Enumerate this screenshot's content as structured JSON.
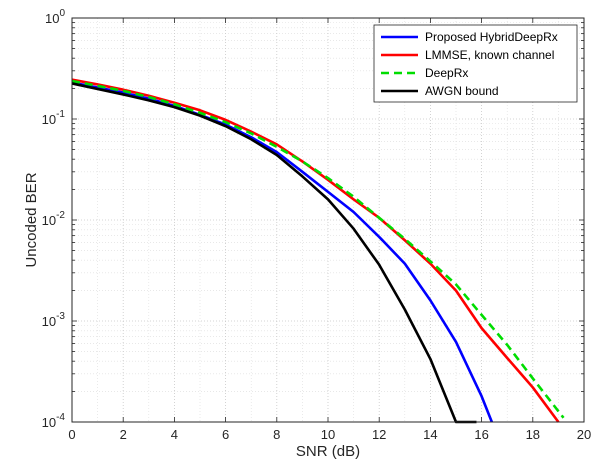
{
  "chart_data": {
    "type": "line",
    "title": "",
    "xlabel": "SNR (dB)",
    "ylabel": "Uncoded BER",
    "xlim": [
      0,
      20
    ],
    "ylim": [
      0.0001,
      1
    ],
    "yscale": "log",
    "grid": "major and minor, dotted",
    "legend_position": "top-right",
    "x_ticks": [
      0,
      2,
      4,
      6,
      8,
      10,
      12,
      14,
      16,
      18,
      20
    ],
    "y_ticks": [
      {
        "value": 0.0001,
        "base": "10",
        "exp": "-4"
      },
      {
        "value": 0.001,
        "base": "10",
        "exp": "-3"
      },
      {
        "value": 0.01,
        "base": "10",
        "exp": "-2"
      },
      {
        "value": 0.1,
        "base": "10",
        "exp": "-1"
      },
      {
        "value": 1,
        "base": "10",
        "exp": "0"
      }
    ],
    "series": [
      {
        "name": "Proposed HybridDeepRx",
        "color": "#0000ff",
        "style": "solid",
        "x": [
          0,
          1,
          2,
          3,
          4,
          5,
          6,
          7,
          8,
          9,
          10,
          11,
          12,
          13,
          14,
          15,
          16,
          16.4
        ],
        "y": [
          0.23,
          0.205,
          0.183,
          0.159,
          0.135,
          0.11,
          0.088,
          0.066,
          0.047,
          0.03,
          0.019,
          0.012,
          0.0068,
          0.0037,
          0.0016,
          0.00062,
          0.00018,
          0.0001
        ]
      },
      {
        "name": "LMMSE, known channel",
        "color": "#ff0000",
        "style": "solid",
        "x": [
          0,
          1,
          2,
          3,
          4,
          5,
          6,
          7,
          8,
          9,
          10,
          11,
          12,
          13,
          14,
          15,
          16,
          17,
          18,
          19
        ],
        "y": [
          0.245,
          0.22,
          0.195,
          0.17,
          0.145,
          0.122,
          0.098,
          0.075,
          0.056,
          0.038,
          0.025,
          0.016,
          0.0105,
          0.0063,
          0.0037,
          0.002,
          0.00085,
          0.00043,
          0.00022,
          0.0001
        ]
      },
      {
        "name": "DeepRx",
        "color": "#00dd00",
        "style": "dashed",
        "x": [
          0,
          1,
          2,
          3,
          4,
          5,
          6,
          7,
          8,
          9,
          10,
          11,
          12,
          13,
          14,
          15,
          16,
          17,
          18,
          19.2
        ],
        "y": [
          0.238,
          0.213,
          0.19,
          0.165,
          0.14,
          0.115,
          0.093,
          0.072,
          0.053,
          0.038,
          0.026,
          0.017,
          0.0105,
          0.0065,
          0.0039,
          0.0023,
          0.00115,
          0.00058,
          0.00027,
          0.00011
        ]
      },
      {
        "name": "AWGN bound",
        "color": "#000000",
        "style": "solid",
        "x": [
          0,
          1,
          2,
          3,
          4,
          5,
          6,
          7,
          8,
          9,
          10,
          11,
          12,
          13,
          14,
          15,
          15.8
        ],
        "y": [
          0.225,
          0.198,
          0.175,
          0.153,
          0.131,
          0.108,
          0.085,
          0.063,
          0.044,
          0.027,
          0.016,
          0.0082,
          0.0036,
          0.0013,
          0.00042,
          0.0001,
          0.0001
        ]
      }
    ]
  }
}
